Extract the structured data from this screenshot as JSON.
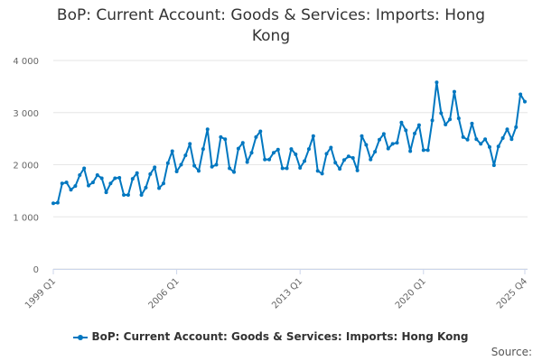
{
  "chart_data": {
    "type": "line",
    "title": "BoP: Current Account: Goods & Services: Imports: Hong Kong",
    "xlabel": "",
    "ylabel": "",
    "ylim": [
      0,
      4000
    ],
    "yticks": [
      0,
      1000,
      2000,
      3000,
      4000
    ],
    "ytick_labels": [
      "0",
      "1 000",
      "2 000",
      "3 000",
      "4 000"
    ],
    "xtick_labels": [
      "1999 Q1",
      "2006 Q1",
      "2013 Q1",
      "2020 Q1",
      "2025 Q4"
    ],
    "xtick_index": [
      0,
      28,
      56,
      84,
      107
    ],
    "grid": true,
    "legend": "bottom",
    "series": [
      {
        "name": "BoP: Current Account: Goods & Services: Imports: Hong Kong",
        "color": "#0077c0",
        "start": "1999 Q1",
        "values": [
          1260,
          1270,
          1640,
          1660,
          1520,
          1590,
          1800,
          1930,
          1600,
          1660,
          1800,
          1740,
          1470,
          1640,
          1740,
          1750,
          1420,
          1420,
          1730,
          1840,
          1420,
          1560,
          1820,
          1950,
          1550,
          1640,
          2030,
          2260,
          1870,
          2000,
          2180,
          2400,
          1980,
          1880,
          2300,
          2680,
          1960,
          2000,
          2530,
          2490,
          1930,
          1860,
          2310,
          2420,
          2050,
          2230,
          2530,
          2640,
          2100,
          2100,
          2230,
          2290,
          1930,
          1930,
          2300,
          2200,
          1940,
          2070,
          2300,
          2550,
          1880,
          1830,
          2210,
          2330,
          2040,
          1920,
          2090,
          2160,
          2130,
          1890,
          2550,
          2380,
          2100,
          2250,
          2480,
          2590,
          2310,
          2400,
          2420,
          2810,
          2660,
          2260,
          2600,
          2760,
          2280,
          2280,
          2850,
          3580,
          2990,
          2770,
          2870,
          3400,
          2890,
          2530,
          2480,
          2790,
          2490,
          2400,
          2490,
          2340,
          1990,
          2350,
          2510,
          2680,
          2490,
          2720,
          3350,
          3210
        ]
      }
    ]
  },
  "source_label": "Source:"
}
